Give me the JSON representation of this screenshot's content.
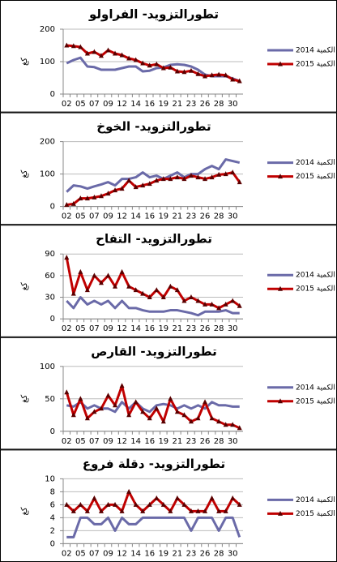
{
  "chart_data": [
    {
      "type": "line",
      "title": "تطورالتزويد- الفراولو",
      "y_label": "كغ",
      "categories": [
        "02",
        null,
        "05",
        null,
        "07",
        null,
        "09",
        null,
        "12",
        null,
        "14",
        null,
        "16",
        null,
        "19",
        null,
        "21",
        null,
        "23",
        null,
        "26",
        null,
        "28",
        null,
        "30",
        null
      ],
      "ylim": [
        0,
        200
      ],
      "yticks": [
        0,
        100,
        200
      ],
      "grid": true,
      "series": [
        {
          "name": "2014 الكمية",
          "color": "#6a6aa8",
          "values": [
            95,
            105,
            112,
            85,
            83,
            75,
            75,
            75,
            80,
            85,
            85,
            70,
            72,
            80,
            82,
            90,
            92,
            90,
            85,
            75,
            60,
            55,
            55,
            55,
            48,
            40
          ]
        },
        {
          "name": "2015 الكمية",
          "color": "#c00000",
          "marker": "triangle",
          "values": [
            150,
            148,
            145,
            125,
            130,
            118,
            135,
            125,
            120,
            110,
            105,
            95,
            88,
            92,
            80,
            82,
            70,
            68,
            72,
            62,
            55,
            58,
            60,
            58,
            45,
            40
          ]
        }
      ]
    },
    {
      "type": "line",
      "title": "تطورالتزويد- الخوخ",
      "y_label": "كغ",
      "categories": [
        "02",
        null,
        "05",
        null,
        "07",
        null,
        "09",
        null,
        "12",
        null,
        "14",
        null,
        "16",
        null,
        "19",
        null,
        "21",
        null,
        "23",
        null,
        "26",
        null,
        "28",
        null,
        "30",
        null
      ],
      "ylim": [
        0,
        200
      ],
      "yticks": [
        0,
        100,
        200
      ],
      "grid": true,
      "series": [
        {
          "name": "2014 الكمية",
          "color": "#6a6aa8",
          "values": [
            45,
            65,
            62,
            55,
            62,
            68,
            75,
            65,
            85,
            85,
            90,
            105,
            90,
            95,
            85,
            95,
            105,
            90,
            100,
            100,
            115,
            125,
            115,
            145,
            140,
            135
          ]
        },
        {
          "name": "2015 الكمية",
          "color": "#c00000",
          "marker": "triangle",
          "values": [
            5,
            8,
            25,
            25,
            28,
            32,
            40,
            50,
            55,
            80,
            60,
            65,
            70,
            80,
            85,
            85,
            90,
            85,
            95,
            90,
            85,
            90,
            98,
            100,
            105,
            75
          ]
        }
      ]
    },
    {
      "type": "line",
      "title": "تطورالتزويد- التفاح",
      "y_label": "كغ",
      "categories": [
        "02",
        null,
        "05",
        null,
        "07",
        null,
        "09",
        null,
        "12",
        null,
        "14",
        null,
        "16",
        null,
        "19",
        null,
        "21",
        null,
        "23",
        null,
        "26",
        null,
        "28",
        null,
        "30",
        null
      ],
      "ylim": [
        0,
        90
      ],
      "yticks": [
        0,
        30,
        60,
        90
      ],
      "grid": true,
      "series": [
        {
          "name": "2014 الكمية",
          "color": "#6a6aa8",
          "values": [
            25,
            15,
            30,
            20,
            25,
            20,
            25,
            15,
            25,
            15,
            15,
            12,
            10,
            10,
            10,
            12,
            12,
            10,
            8,
            5,
            10,
            10,
            10,
            12,
            8,
            8
          ]
        },
        {
          "name": "2015 الكمية",
          "color": "#c00000",
          "marker": "triangle",
          "values": [
            85,
            35,
            65,
            40,
            60,
            50,
            60,
            45,
            65,
            45,
            40,
            35,
            30,
            40,
            30,
            45,
            40,
            25,
            30,
            25,
            20,
            20,
            15,
            20,
            25,
            18
          ]
        }
      ]
    },
    {
      "type": "line",
      "title": "تطورالتزويد- القارص",
      "y_label": "كغ",
      "categories": [
        "02",
        null,
        "05",
        null,
        "07",
        null,
        "09",
        null,
        "12",
        null,
        "14",
        null,
        "16",
        null,
        "19",
        null,
        "21",
        null,
        "23",
        null,
        "26",
        null,
        "28",
        null,
        "30",
        null
      ],
      "ylim": [
        0,
        100
      ],
      "yticks": [
        0,
        50,
        100
      ],
      "grid": true,
      "series": [
        {
          "name": "2014 الكمية",
          "color": "#6a6aa8",
          "values": [
            40,
            38,
            45,
            35,
            40,
            35,
            35,
            30,
            45,
            35,
            45,
            35,
            30,
            40,
            42,
            40,
            35,
            40,
            35,
            40,
            35,
            45,
            40,
            40,
            38,
            38
          ]
        },
        {
          "name": "2015 الكمية",
          "color": "#c00000",
          "marker": "triangle",
          "values": [
            60,
            25,
            50,
            20,
            30,
            35,
            55,
            40,
            70,
            25,
            45,
            30,
            20,
            35,
            15,
            50,
            30,
            25,
            15,
            20,
            45,
            20,
            15,
            10,
            10,
            5
          ]
        }
      ]
    },
    {
      "type": "line",
      "title": "تطورالتزويد- دقلة فروع",
      "y_label": "كغ",
      "categories": [
        "02",
        null,
        "05",
        null,
        "07",
        null,
        "09",
        null,
        "12",
        null,
        "14",
        null,
        "16",
        null,
        "19",
        null,
        "21",
        null,
        "23",
        null,
        "26",
        null,
        "28",
        null,
        "30",
        null
      ],
      "ylim": [
        0,
        10
      ],
      "yticks": [
        0,
        2,
        4,
        6,
        8,
        10
      ],
      "grid": true,
      "series": [
        {
          "name": "2014 الكمية",
          "color": "#6a6aa8",
          "values": [
            1,
            1,
            4,
            4,
            3,
            3,
            4,
            2,
            4,
            3,
            3,
            4,
            4,
            4,
            4,
            4,
            4,
            4,
            2,
            4,
            4,
            4,
            2,
            4,
            4,
            1
          ]
        },
        {
          "name": "2015 الكمية",
          "color": "#c00000",
          "marker": "triangle",
          "values": [
            6,
            5,
            6,
            5,
            7,
            5,
            6,
            6,
            5,
            8,
            6,
            5,
            6,
            7,
            6,
            5,
            7,
            6,
            5,
            5,
            5,
            7,
            5,
            5,
            7,
            6
          ]
        }
      ]
    }
  ]
}
